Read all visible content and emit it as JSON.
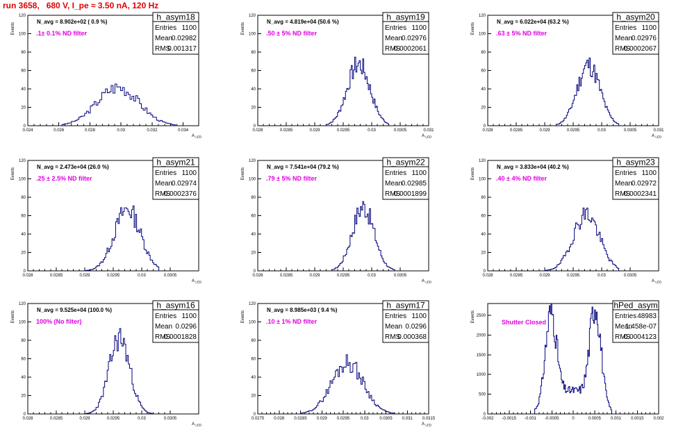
{
  "title": "run 3658,   680 V, I_pe ≈ 3.50 nA, 120 Hz",
  "colors": {
    "title": "#e00000",
    "histogram": "#00007a",
    "filter_label": "#e000e0"
  },
  "stat_labels": {
    "entries": "Entries",
    "mean": "Mean",
    "rms": "RMS"
  },
  "chart_data": [
    {
      "type": "histogram",
      "name": "h_asym18",
      "ylabel": "Events",
      "xlabel": "A_LED",
      "navg": "N_avg = 8.902e+02 ( 0.9 %)",
      "filter": ".1± 0.1% ND filter",
      "entries": "1100",
      "mean": "0.02982",
      "rms": "0.001317",
      "xlim": [
        0.024,
        0.035
      ],
      "ylim": [
        0,
        120
      ],
      "xticks": [
        "0.024",
        "0.026",
        "0.028",
        "0.03",
        "0.032",
        "0.034"
      ],
      "xtickvals": [
        0.024,
        0.026,
        0.028,
        0.03,
        0.032,
        0.034
      ],
      "yticks": [
        "0",
        "20",
        "40",
        "60",
        "80",
        "100",
        "120"
      ],
      "ytickvals": [
        0,
        20,
        40,
        60,
        80,
        100,
        120
      ],
      "peak": 42,
      "dist": "gauss",
      "center": 0.0298,
      "sigma": 0.00135,
      "bins": [
        0.0262,
        0.0335
      ],
      "nbins": 60,
      "seed": 3
    },
    {
      "type": "histogram",
      "name": "h_asym19",
      "ylabel": "Events",
      "xlabel": "A_LED",
      "navg": "N_avg = 4.819e+04 (50.6 %)",
      "filter": ".50 ± 5% ND filter",
      "entries": "1100",
      "mean": "0.02976",
      "rms": "0.0002061",
      "xlim": [
        0.028,
        0.031
      ],
      "ylim": [
        0,
        120
      ],
      "xticks": [
        "0.028",
        "0.0285",
        "0.029",
        "0.0295",
        "0.03",
        "0.0305",
        "0.031"
      ],
      "xtickvals": [
        0.028,
        0.0285,
        0.029,
        0.0295,
        0.03,
        0.0305,
        0.031
      ],
      "yticks": [
        "0",
        "20",
        "40",
        "60",
        "80",
        "100",
        "120"
      ],
      "ytickvals": [
        0,
        20,
        40,
        60,
        80,
        100,
        120
      ],
      "peak": 67,
      "dist": "gauss",
      "center": 0.02977,
      "sigma": 0.0002,
      "bins": [
        0.0292,
        0.0303
      ],
      "nbins": 55,
      "seed": 7
    },
    {
      "type": "histogram",
      "name": "h_asym20",
      "ylabel": "Events",
      "xlabel": "A_LED",
      "navg": "N_avg = 6.022e+04 (63.2 %)",
      "filter": ".63 ± 5% ND filter",
      "entries": "1100",
      "mean": "0.02976",
      "rms": "0.0002067",
      "xlim": [
        0.028,
        0.031
      ],
      "ylim": [
        0,
        120
      ],
      "xticks": [
        "0.028",
        "0.0285",
        "0.029",
        "0.0295",
        "0.03",
        "0.0305",
        "0.031"
      ],
      "xtickvals": [
        0.028,
        0.0285,
        0.029,
        0.0295,
        0.03,
        0.0305,
        0.031
      ],
      "yticks": [
        "0",
        "20",
        "40",
        "60",
        "80",
        "100",
        "120"
      ],
      "ytickvals": [
        0,
        20,
        40,
        60,
        80,
        100,
        120
      ],
      "peak": 66,
      "dist": "gauss",
      "center": 0.02977,
      "sigma": 0.0002,
      "bins": [
        0.0292,
        0.0303
      ],
      "nbins": 55,
      "seed": 11
    },
    {
      "type": "histogram",
      "name": "h_asym21",
      "ylabel": "Events",
      "xlabel": "A_LED",
      "navg": "N_avg = 2.473e+04 (26.0 %)",
      "filter": ".25 ± 2.5% ND filter",
      "entries": "1100",
      "mean": "0.02974",
      "rms": "0.0002376",
      "xlim": [
        0.028,
        0.031
      ],
      "ylim": [
        0,
        120
      ],
      "xticks": [
        "0.028",
        "0.0285",
        "0.029",
        "0.0295",
        "0.03",
        "0.0305"
      ],
      "xtickvals": [
        0.028,
        0.0285,
        0.029,
        0.0295,
        0.03,
        0.0305
      ],
      "yticks": [
        "0",
        "20",
        "40",
        "60",
        "80",
        "100",
        "120"
      ],
      "ytickvals": [
        0,
        20,
        40,
        60,
        80,
        100,
        120
      ],
      "peak": 67,
      "dist": "gauss",
      "center": 0.02975,
      "sigma": 0.00023,
      "bins": [
        0.029,
        0.0303
      ],
      "nbins": 60,
      "seed": 13
    },
    {
      "type": "histogram",
      "name": "h_asym22",
      "ylabel": "Events",
      "xlabel": "A_LED",
      "navg": "N_avg = 7.541e+04 (79.2 %)",
      "filter": ".79 ± 5% ND filter",
      "entries": "1100",
      "mean": "0.02985",
      "rms": "0.0001899",
      "xlim": [
        0.028,
        0.031
      ],
      "ylim": [
        0,
        120
      ],
      "xticks": [
        "0.028",
        "0.0285",
        "0.029",
        "0.0295",
        "0.03",
        "0.0305"
      ],
      "xtickvals": [
        0.028,
        0.0285,
        0.029,
        0.0295,
        0.03,
        0.0305
      ],
      "yticks": [
        "0",
        "20",
        "40",
        "60",
        "80",
        "100",
        "120"
      ],
      "ytickvals": [
        0,
        20,
        40,
        60,
        80,
        100,
        120
      ],
      "peak": 70,
      "dist": "gauss",
      "center": 0.02985,
      "sigma": 0.00019,
      "bins": [
        0.0293,
        0.0304
      ],
      "nbins": 55,
      "seed": 17
    },
    {
      "type": "histogram",
      "name": "h_asym23",
      "ylabel": "Events",
      "xlabel": "A_LED",
      "navg": "N_avg = 3.833e+04 (40.2 %)",
      "filter": ".40 ± 4% ND filter",
      "entries": "1100",
      "mean": "0.02972",
      "rms": "0.0002341",
      "xlim": [
        0.028,
        0.031
      ],
      "ylim": [
        0,
        120
      ],
      "xticks": [
        "0.028",
        "0.0285",
        "0.029",
        "0.0295",
        "0.03",
        "0.0305"
      ],
      "xtickvals": [
        0.028,
        0.0285,
        0.029,
        0.0295,
        0.03,
        0.0305
      ],
      "yticks": [
        "0",
        "20",
        "40",
        "60",
        "80",
        "100",
        "120"
      ],
      "ytickvals": [
        0,
        20,
        40,
        60,
        80,
        100,
        120
      ],
      "peak": 62,
      "dist": "gauss",
      "center": 0.02973,
      "sigma": 0.00023,
      "bins": [
        0.029,
        0.0303
      ],
      "nbins": 60,
      "seed": 19
    },
    {
      "type": "histogram",
      "name": "h_asym16",
      "ylabel": "Events",
      "xlabel": "A_LED",
      "navg": "N_avg = 9.525e+04 (100.0 %)",
      "filter": "100% (No filter)",
      "entries": "1100",
      "mean": "0.0296",
      "rms": "0.0001828",
      "xlim": [
        0.028,
        0.031
      ],
      "ylim": [
        0,
        120
      ],
      "xticks": [
        "0.028",
        "0.0285",
        "0.029",
        "0.0295",
        "0.03",
        "0.0305"
      ],
      "xtickvals": [
        0.028,
        0.0285,
        0.029,
        0.0295,
        0.03,
        0.0305
      ],
      "yticks": [
        "0",
        "20",
        "40",
        "60",
        "80",
        "100",
        "120"
      ],
      "ytickvals": [
        0,
        20,
        40,
        60,
        80,
        100,
        120
      ],
      "peak": 83,
      "dist": "gauss",
      "center": 0.02961,
      "sigma": 0.00018,
      "bins": [
        0.029,
        0.0302
      ],
      "nbins": 55,
      "seed": 23
    },
    {
      "type": "histogram",
      "name": "h_asym17",
      "ylabel": "Events",
      "xlabel": "A_LED",
      "navg": "N_avg = 8.985e+03 ( 9.4 %)",
      "filter": ".10 ± 1% ND filter",
      "entries": "1100",
      "mean": "0.0296",
      "rms": "0.000368",
      "xlim": [
        0.0275,
        0.0315
      ],
      "ylim": [
        0,
        120
      ],
      "xticks": [
        "0.0275",
        "0.028",
        "0.0285",
        "0.029",
        "0.0295",
        "0.03",
        "0.0305",
        "0.031",
        "0.0315"
      ],
      "xtickvals": [
        0.0275,
        0.028,
        0.0285,
        0.029,
        0.0295,
        0.03,
        0.0305,
        0.031,
        0.0315
      ],
      "yticks": [
        "0",
        "20",
        "40",
        "60",
        "80",
        "100",
        "120"
      ],
      "ytickvals": [
        0,
        20,
        40,
        60,
        80,
        100,
        120
      ],
      "peak": 56,
      "dist": "gauss",
      "center": 0.0296,
      "sigma": 0.00037,
      "bins": [
        0.0285,
        0.0307
      ],
      "nbins": 70,
      "seed": 29
    },
    {
      "type": "histogram",
      "name": "hPed_asym",
      "ylabel": "Events",
      "xlabel": "",
      "navg": "",
      "filter": "Shutter Closed",
      "entries": "48983",
      "mean": "1.458e-07",
      "rms": "0.0004123",
      "xlim": [
        -0.002,
        0.002
      ],
      "ylim": [
        0,
        2800
      ],
      "xticks": [
        "-0.002",
        "-0.0015",
        "-0.001",
        "-0.0005",
        "0",
        "0.0005",
        "0.001",
        "0.0015",
        "0.002"
      ],
      "xtickvals": [
        -0.002,
        -0.0015,
        -0.001,
        -0.0005,
        0,
        0.0005,
        0.001,
        0.0015,
        0.002
      ],
      "yticks": [
        "0",
        "500",
        "1000",
        "1500",
        "2000",
        "2500"
      ],
      "ytickvals": [
        0,
        500,
        1000,
        1500,
        2000,
        2500
      ],
      "peak": 2480,
      "dist": "double",
      "center": 0.0,
      "sigma": 0.00013,
      "bins": [
        -0.0009,
        0.0009
      ],
      "nbins": 90,
      "seed": 31
    }
  ]
}
